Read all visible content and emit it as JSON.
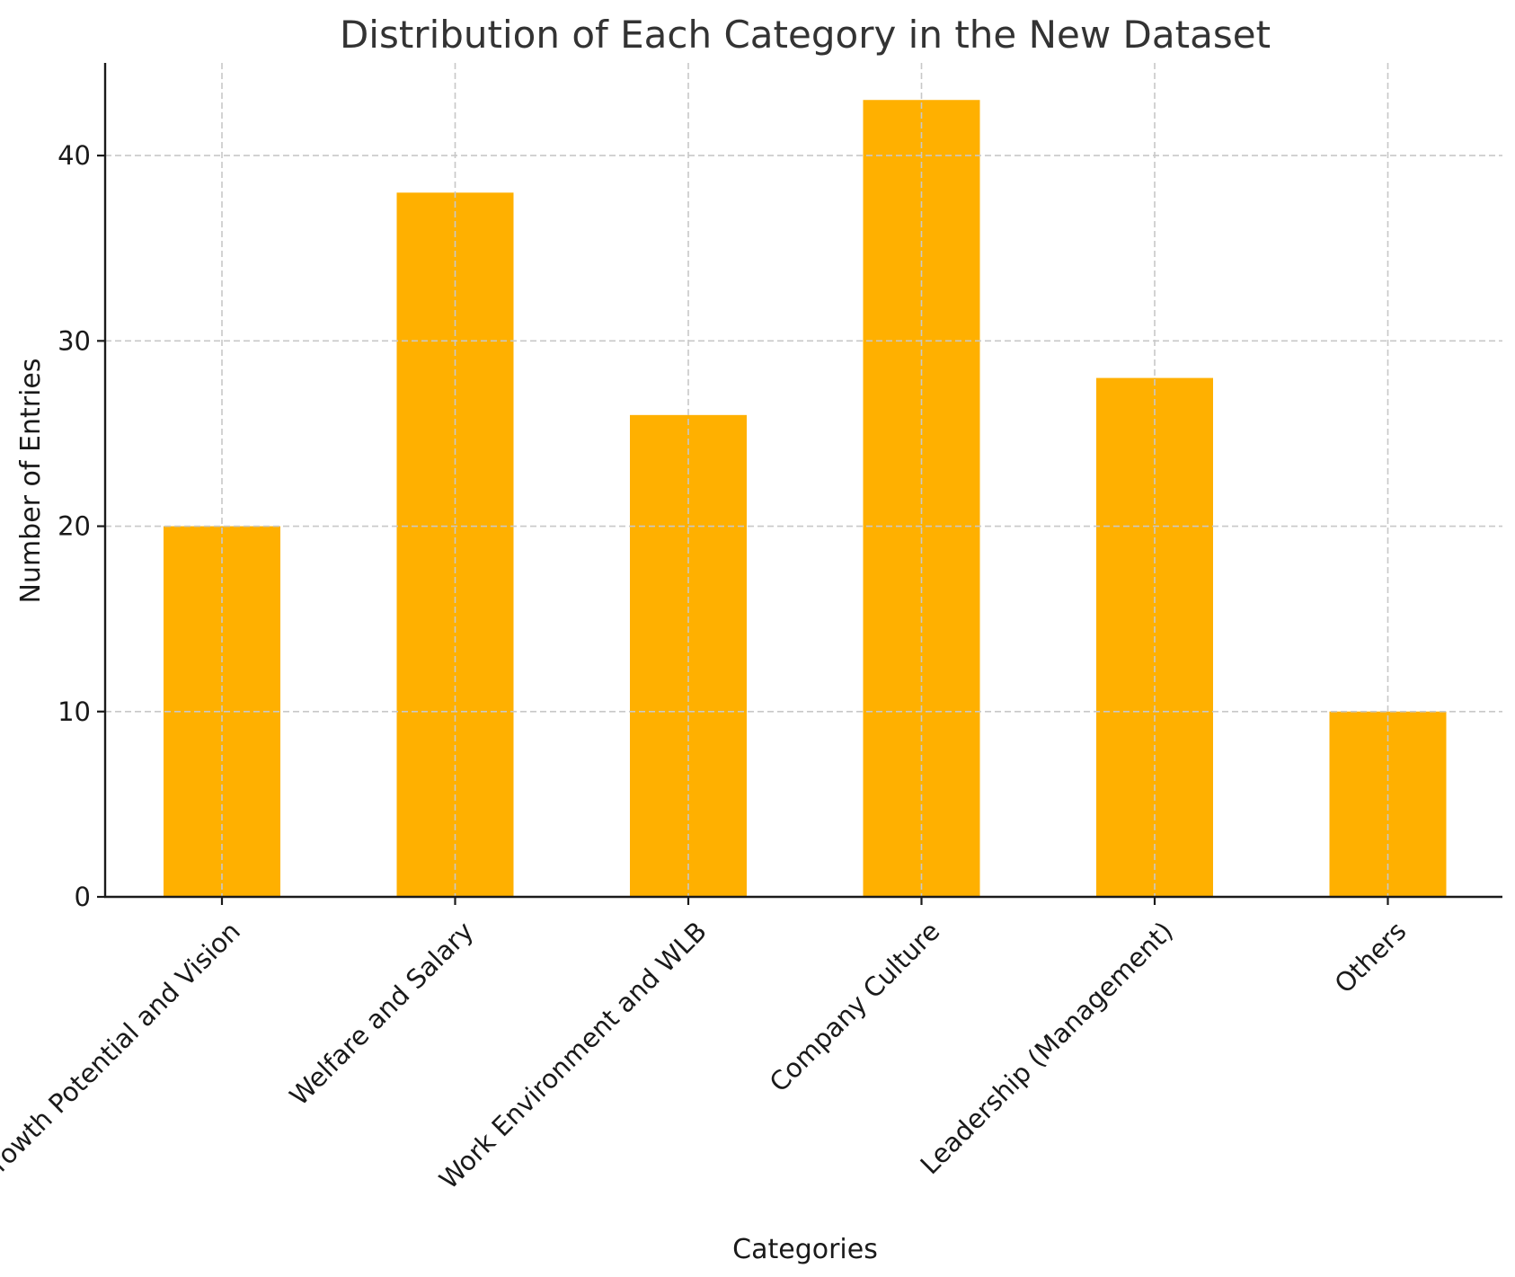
{
  "chart_data": {
    "type": "bar",
    "title": "Distribution of Each Category in the New Dataset",
    "xlabel": "Categories",
    "ylabel": "Number of Entries",
    "categories": [
      "Growth Potential and Vision",
      "Welfare and Salary",
      "Work Environment and WLB",
      "Company Culture",
      "Leadership (Management)",
      "Others"
    ],
    "values": [
      20,
      38,
      26,
      43,
      28,
      10
    ],
    "ylim": [
      0,
      45
    ],
    "yticks": [
      0,
      10,
      20,
      30,
      40
    ],
    "grid": true,
    "bar_color": "#FFB000"
  }
}
